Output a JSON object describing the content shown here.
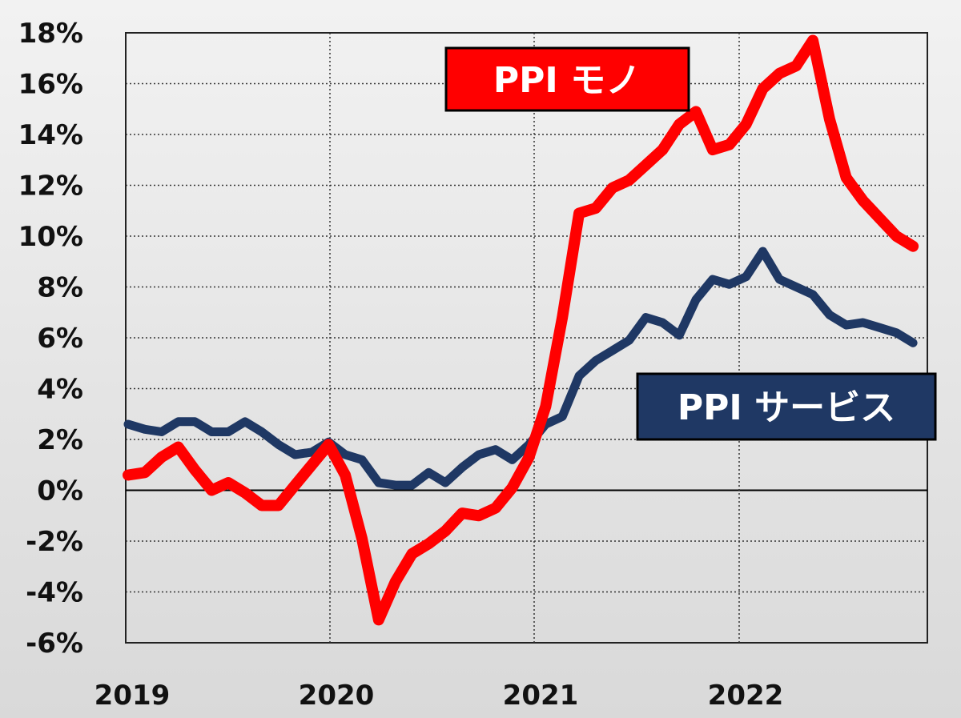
{
  "chart_data": {
    "type": "line",
    "x": [
      "2019-01",
      "2019-02",
      "2019-03",
      "2019-04",
      "2019-05",
      "2019-06",
      "2019-07",
      "2019-08",
      "2019-09",
      "2019-10",
      "2019-11",
      "2019-12",
      "2020-01",
      "2020-02",
      "2020-03",
      "2020-04",
      "2020-05",
      "2020-06",
      "2020-07",
      "2020-08",
      "2020-09",
      "2020-10",
      "2020-11",
      "2020-12",
      "2021-01",
      "2021-02",
      "2021-03",
      "2021-04",
      "2021-05",
      "2021-06",
      "2021-07",
      "2021-08",
      "2021-09",
      "2021-10",
      "2021-11",
      "2021-12",
      "2022-01",
      "2022-02",
      "2022-03",
      "2022-04",
      "2022-05",
      "2022-06",
      "2022-07",
      "2022-08",
      "2022-09",
      "2022-10",
      "2022-11",
      "2022-12"
    ],
    "x_ticks": [
      "2019",
      "2020",
      "2021",
      "2022"
    ],
    "y_ticks": [
      "18%",
      "16%",
      "14%",
      "12%",
      "10%",
      "8%",
      "6%",
      "4%",
      "2%",
      "0%",
      "-2%",
      "-4%",
      "-6%"
    ],
    "ylim": [
      -6,
      18
    ],
    "grid": true,
    "series": [
      {
        "name": "PPI モノ",
        "color": "#ff0000",
        "values": [
          0.6,
          0.7,
          1.3,
          1.7,
          0.8,
          0.0,
          0.3,
          -0.1,
          -0.6,
          -0.6,
          0.2,
          1.0,
          1.8,
          0.6,
          -1.9,
          -5.1,
          -3.6,
          -2.5,
          -2.1,
          -1.6,
          -0.9,
          -1.0,
          -0.7,
          0.1,
          1.3,
          3.3,
          6.8,
          10.9,
          11.1,
          11.9,
          12.2,
          12.8,
          13.4,
          14.4,
          14.9,
          13.4,
          13.6,
          14.4,
          15.8,
          16.4,
          16.7,
          17.7,
          14.6,
          12.3,
          11.4,
          10.7,
          10.0,
          9.6
        ]
      },
      {
        "name": "PPI サービス",
        "color": "#1f3864",
        "values": [
          2.6,
          2.4,
          2.3,
          2.7,
          2.7,
          2.3,
          2.3,
          2.7,
          2.3,
          1.8,
          1.4,
          1.5,
          1.9,
          1.4,
          1.2,
          0.3,
          0.2,
          0.2,
          0.7,
          0.3,
          0.9,
          1.4,
          1.6,
          1.2,
          1.8,
          2.6,
          2.9,
          4.5,
          5.1,
          5.5,
          5.9,
          6.8,
          6.6,
          6.1,
          7.5,
          8.3,
          8.1,
          8.4,
          9.4,
          8.3,
          8.0,
          7.7,
          6.9,
          6.5,
          6.6,
          6.4,
          6.2,
          5.8
        ]
      }
    ]
  }
}
